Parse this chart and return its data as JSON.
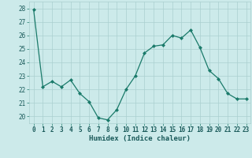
{
  "x": [
    0,
    1,
    2,
    3,
    4,
    5,
    6,
    7,
    8,
    9,
    10,
    11,
    12,
    13,
    14,
    15,
    16,
    17,
    18,
    19,
    20,
    21,
    22,
    23
  ],
  "y": [
    27.9,
    22.2,
    22.6,
    22.2,
    22.7,
    21.7,
    21.1,
    19.9,
    19.75,
    20.5,
    22.0,
    23.0,
    24.7,
    25.2,
    25.3,
    26.0,
    25.8,
    26.4,
    25.1,
    23.4,
    22.8,
    21.7,
    21.3,
    21.3
  ],
  "line_color": "#1a7a6a",
  "marker": "D",
  "marker_size": 2.0,
  "background_color": "#cceaea",
  "grid_color": "#aacfcf",
  "xlabel": "Humidex (Indice chaleur)",
  "ylim": [
    19.5,
    28.5
  ],
  "xlim": [
    -0.5,
    23.5
  ],
  "yticks": [
    20,
    21,
    22,
    23,
    24,
    25,
    26,
    27,
    28
  ],
  "xticks": [
    0,
    1,
    2,
    3,
    4,
    5,
    6,
    7,
    8,
    9,
    10,
    11,
    12,
    13,
    14,
    15,
    16,
    17,
    18,
    19,
    20,
    21,
    22,
    23
  ],
  "tick_color": "#1a7a6a",
  "label_color": "#1a5a5a",
  "tick_fontsize": 5.5,
  "xlabel_fontsize": 6.5,
  "linewidth": 0.9
}
